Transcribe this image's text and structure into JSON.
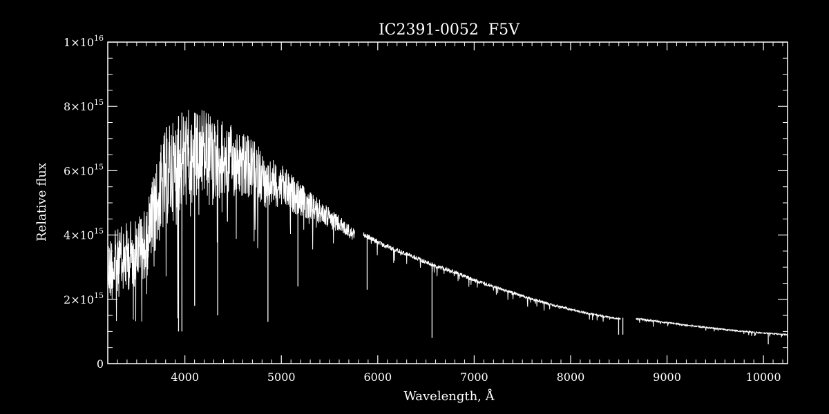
{
  "chart_data": {
    "type": "line",
    "title": "IC2391-0052  F5V",
    "xlabel": "Wavelength, Å",
    "ylabel": "Relative flux",
    "xlim": [
      3200,
      10250
    ],
    "ylim": [
      0,
      1e+16
    ],
    "x_ticks": [
      4000,
      5000,
      6000,
      7000,
      8000,
      9000,
      10000
    ],
    "x_tick_labels": [
      "4000",
      "5000",
      "6000",
      "7000",
      "8000",
      "9000",
      "10000"
    ],
    "y_ticks": [
      0,
      2000000000000000.0,
      4000000000000000.0,
      6000000000000000.0,
      8000000000000000.0,
      1e+16
    ],
    "y_tick_labels": [
      {
        "mantissa": "0",
        "exp": ""
      },
      {
        "mantissa": "2×10",
        "exp": "15"
      },
      {
        "mantissa": "4×10",
        "exp": "15"
      },
      {
        "mantissa": "6×10",
        "exp": "15"
      },
      {
        "mantissa": "8×10",
        "exp": "15"
      },
      {
        "mantissa": "1×10",
        "exp": "16"
      }
    ],
    "grid": false,
    "colors": {
      "background": "#000000",
      "line": "#ffffff"
    },
    "series": [
      {
        "continuum": {
          "x": [
            3200,
            3400,
            3600,
            3700,
            3800,
            3900,
            4000,
            4050,
            4100,
            4200,
            4300,
            4400,
            4500,
            4600,
            4700,
            4800,
            4850,
            4900,
            5000,
            5200,
            5400,
            5600,
            5750,
            5850,
            6000,
            6200,
            6400,
            6600,
            6800,
            7000,
            7200,
            7400,
            7600,
            7800,
            8000,
            8200,
            8400,
            8500,
            8700,
            9000,
            9200,
            9400,
            9600,
            9800,
            10000,
            10250
          ],
          "y": [
            4000000000000000.0,
            4400000000000000.0,
            4900000000000000.0,
            6200000000000000.0,
            7400000000000000.0,
            7600000000000000.0,
            7900000000000000.0,
            8000000000000000.0,
            7800000000000000.0,
            8000000000000000.0,
            7600000000000000.0,
            7550000000000000.0,
            7400000000000000.0,
            7200000000000000.0,
            7000000000000000.0,
            6700000000000000.0,
            6100000000000000.0,
            6400000000000000.0,
            6200000000000000.0,
            5600000000000000.0,
            5100000000000000.0,
            4600000000000000.0,
            4200000000000000.0,
            4100000000000000.0,
            3850000000000000.0,
            3600000000000000.0,
            3350000000000000.0,
            3100000000000000.0,
            2900000000000000.0,
            2650000000000000.0,
            2450000000000000.0,
            2250000000000000.0,
            2050000000000000.0,
            1870000000000000.0,
            1720000000000000.0,
            1580000000000000.0,
            1470000000000000.0,
            1430000000000000.0,
            1420000000000000.0,
            1300000000000000.0,
            1220000000000000.0,
            1150000000000000.0,
            1080000000000000.0,
            1020000000000000.0,
            970000000000000.0,
            920000000000000.0
          ]
        },
        "gaps": [
          [
            5760,
            5850
          ],
          [
            8520,
            8680
          ]
        ],
        "absorption_lines": [
          {
            "x": 3934,
            "y": 1000000000000000.0
          },
          {
            "x": 3969,
            "y": 1000000000000000.0
          },
          {
            "x": 4101,
            "y": 1800000000000000.0
          },
          {
            "x": 4340,
            "y": 1500000000000000.0
          },
          {
            "x": 4861,
            "y": 1300000000000000.0
          },
          {
            "x": 5172,
            "y": 2400000000000000.0
          },
          {
            "x": 5890,
            "y": 2300000000000000.0
          },
          {
            "x": 6563,
            "y": 800000000000000.0
          },
          {
            "x": 8498,
            "y": 900000000000000.0
          },
          {
            "x": 8542,
            "y": 900000000000000.0
          },
          {
            "x": 10050,
            "y": 600000000000000.0
          }
        ]
      }
    ]
  }
}
